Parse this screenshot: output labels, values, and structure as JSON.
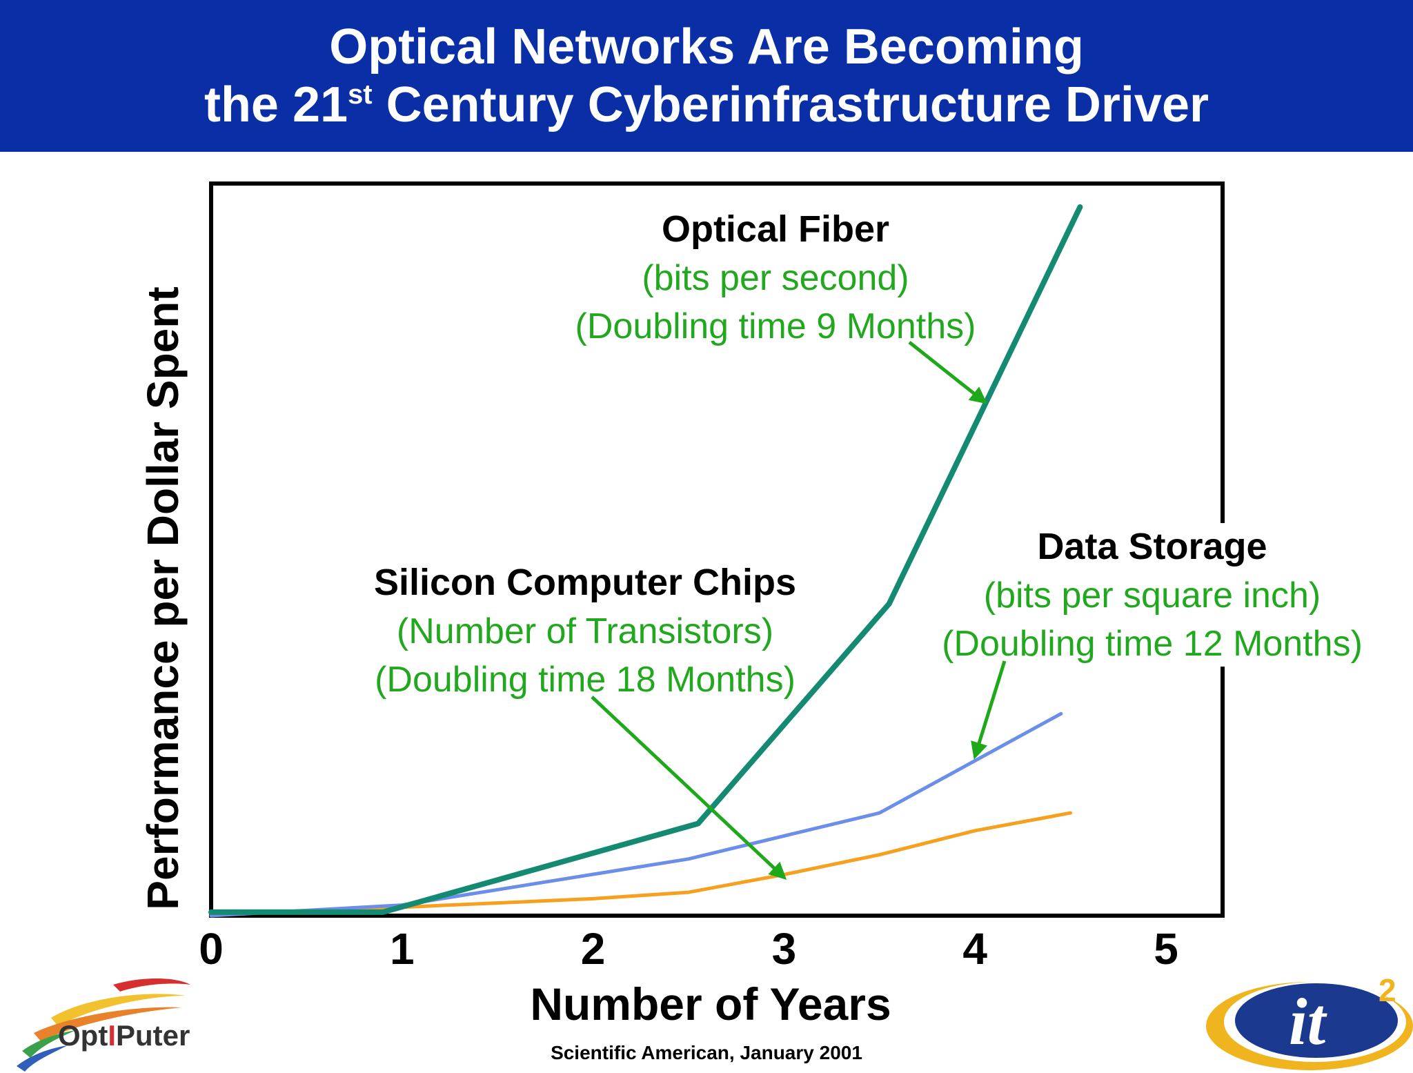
{
  "header": {
    "title_line1": "Optical Networks Are Becoming",
    "title_line2_pre": "the 21",
    "title_line2_sup": "st",
    "title_line2_post": " Century Cyberinfrastructure Driver"
  },
  "chart_data": {
    "type": "line",
    "xlabel": "Number of Years",
    "ylabel": "Performance per Dollar Spent",
    "xlim": [
      0,
      5
    ],
    "ylim": [
      0,
      100
    ],
    "x_ticks": [
      "0",
      "1",
      "2",
      "3",
      "4",
      "5"
    ],
    "grid": false,
    "series": [
      {
        "name": "Optical Fiber",
        "color": "#148a72",
        "points": [
          [
            0,
            0.5
          ],
          [
            0.9,
            0.5
          ],
          [
            2.55,
            13
          ],
          [
            3.55,
            44
          ],
          [
            4.55,
            100
          ]
        ]
      },
      {
        "name": "Data Storage",
        "color": "#6b8ee8",
        "points": [
          [
            0,
            0
          ],
          [
            1,
            1.5
          ],
          [
            2.5,
            8
          ],
          [
            3.5,
            14.5
          ],
          [
            4.45,
            28.5
          ]
        ]
      },
      {
        "name": "Silicon Computer Chips",
        "color": "#f5a01e",
        "points": [
          [
            0,
            0.2
          ],
          [
            1,
            1.2
          ],
          [
            2,
            2.4
          ],
          [
            2.5,
            3.3
          ],
          [
            3,
            5.8
          ],
          [
            3.5,
            8.6
          ],
          [
            4,
            12
          ],
          [
            4.5,
            14.5
          ]
        ]
      }
    ],
    "annotations": [
      {
        "id": "optical",
        "title": "Optical Fiber",
        "line1": "(bits per second)",
        "line2": "(Doubling time 9 Months)",
        "arrow_to": [
          4.05,
          72.5
        ]
      },
      {
        "id": "storage",
        "title": "Data Storage",
        "line1": "(bits per square inch)",
        "line2": "(Doubling time 12 Months)",
        "arrow_to": [
          4.0,
          22.5
        ]
      },
      {
        "id": "chips",
        "title": "Silicon Computer Chips",
        "line1": "(Number of Transistors)",
        "line2": "(Doubling time 18 Months)",
        "arrow_to": [
          3.0,
          5.4
        ]
      }
    ],
    "label_color": "#22a81e",
    "arrow_color": "#1fa81a"
  },
  "footer": {
    "source": "Scientific American, January 2001",
    "logo_left": "OptIPuter",
    "logo_right_main": "it",
    "logo_right_sup": "2"
  }
}
